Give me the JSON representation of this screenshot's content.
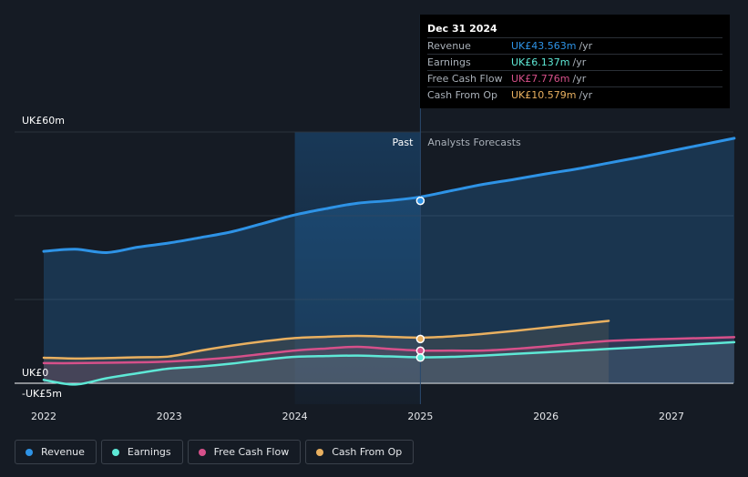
{
  "tooltip": {
    "date": "Dec 31 2024",
    "rows": [
      {
        "label": "Revenue",
        "value": "UK£43.563m",
        "unit": "/yr",
        "color": "#2e93e6"
      },
      {
        "label": "Earnings",
        "value": "UK£6.137m",
        "unit": "/yr",
        "color": "#5ee8d6"
      },
      {
        "label": "Free Cash Flow",
        "value": "UK£7.776m",
        "unit": "/yr",
        "color": "#d6508a"
      },
      {
        "label": "Cash From Op",
        "value": "UK£10.579m",
        "unit": "/yr",
        "color": "#e9b060"
      }
    ]
  },
  "legend": [
    {
      "label": "Revenue",
      "color": "#2e93e6"
    },
    {
      "label": "Earnings",
      "color": "#5ee8d6"
    },
    {
      "label": "Free Cash Flow",
      "color": "#d6508a"
    },
    {
      "label": "Cash From Op",
      "color": "#e9b060"
    }
  ],
  "chart_data": {
    "type": "line",
    "title": "",
    "xlabel": "",
    "ylabel": "",
    "past_label": "Past",
    "forecast_label": "Analysts Forecasts",
    "ylim": [
      -5,
      60
    ],
    "xlim": [
      2021.9,
      2027.5
    ],
    "y_tick_labels": [
      {
        "value": 60,
        "label": "UK£60m"
      },
      {
        "value": 0,
        "label": "UK£0"
      },
      {
        "value": -5,
        "label": "-UK£5m"
      }
    ],
    "x_tick_labels": [
      {
        "value": 2022,
        "label": "2022"
      },
      {
        "value": 2023,
        "label": "2023"
      },
      {
        "value": 2024,
        "label": "2024"
      },
      {
        "value": 2025,
        "label": "2025"
      },
      {
        "value": 2026,
        "label": "2026"
      },
      {
        "value": 2027,
        "label": "2027"
      }
    ],
    "gridlines": [
      60,
      40,
      20,
      0
    ],
    "past_highlight_start": 2024.0,
    "divider_x": 2025.0,
    "series": [
      {
        "name": "Revenue",
        "color": "#2e93e6",
        "fill": true,
        "x": [
          2022.0,
          2022.25,
          2022.5,
          2022.75,
          2023.0,
          2023.25,
          2023.5,
          2023.75,
          2024.0,
          2024.25,
          2024.5,
          2024.75,
          2025.0,
          2025.25,
          2025.5,
          2025.75,
          2026.0,
          2026.25,
          2026.5,
          2026.75,
          2027.0,
          2027.25,
          2027.5
        ],
        "y": [
          31.5,
          32.0,
          31.2,
          32.5,
          33.5,
          34.8,
          36.2,
          38.2,
          40.2,
          41.7,
          43.0,
          43.6,
          44.5,
          46.0,
          47.5,
          48.7,
          50.0,
          51.2,
          52.6,
          54.0,
          55.5,
          57.0,
          58.5
        ],
        "marker_x": 2025.0,
        "marker_y": 43.563
      },
      {
        "name": "Cash From Op",
        "color": "#e9b060",
        "fill": true,
        "x": [
          2022.0,
          2022.25,
          2022.5,
          2022.75,
          2023.0,
          2023.25,
          2023.5,
          2023.75,
          2024.0,
          2024.25,
          2024.5,
          2024.75,
          2025.0,
          2025.25,
          2025.5,
          2025.75,
          2026.0,
          2026.25,
          2026.5
        ],
        "y": [
          6.1,
          5.9,
          6.0,
          6.2,
          6.4,
          7.8,
          9.0,
          10.0,
          10.8,
          11.1,
          11.3,
          11.1,
          10.9,
          11.2,
          11.8,
          12.5,
          13.3,
          14.1,
          14.9
        ],
        "marker_x": 2025.0,
        "marker_y": 10.579
      },
      {
        "name": "Free Cash Flow",
        "color": "#d6508a",
        "fill": true,
        "x": [
          2022.0,
          2022.25,
          2022.5,
          2022.75,
          2023.0,
          2023.25,
          2023.5,
          2023.75,
          2024.0,
          2024.25,
          2024.5,
          2024.75,
          2025.0,
          2025.25,
          2025.5,
          2025.75,
          2026.0,
          2026.25,
          2026.5,
          2026.75,
          2027.0,
          2027.25,
          2027.5
        ],
        "y": [
          4.8,
          4.8,
          4.9,
          5.0,
          5.2,
          5.6,
          6.2,
          7.0,
          7.8,
          8.3,
          8.7,
          8.2,
          7.8,
          7.8,
          7.8,
          8.2,
          8.8,
          9.5,
          10.1,
          10.4,
          10.6,
          10.8,
          11.0
        ],
        "marker_x": 2025.0,
        "marker_y": 7.776
      },
      {
        "name": "Earnings",
        "color": "#5ee8d6",
        "fill": true,
        "x": [
          2022.0,
          2022.25,
          2022.5,
          2022.75,
          2023.0,
          2023.25,
          2023.5,
          2023.75,
          2024.0,
          2024.25,
          2024.5,
          2024.75,
          2025.0,
          2025.25,
          2025.5,
          2025.75,
          2026.0,
          2026.25,
          2026.5,
          2026.75,
          2027.0,
          2027.25,
          2027.5
        ],
        "y": [
          0.8,
          -0.3,
          1.2,
          2.4,
          3.5,
          4.0,
          4.7,
          5.6,
          6.3,
          6.5,
          6.6,
          6.4,
          6.2,
          6.3,
          6.6,
          7.0,
          7.4,
          7.8,
          8.2,
          8.6,
          9.0,
          9.4,
          9.8
        ],
        "marker_x": 2025.0,
        "marker_y": 6.137
      }
    ]
  }
}
